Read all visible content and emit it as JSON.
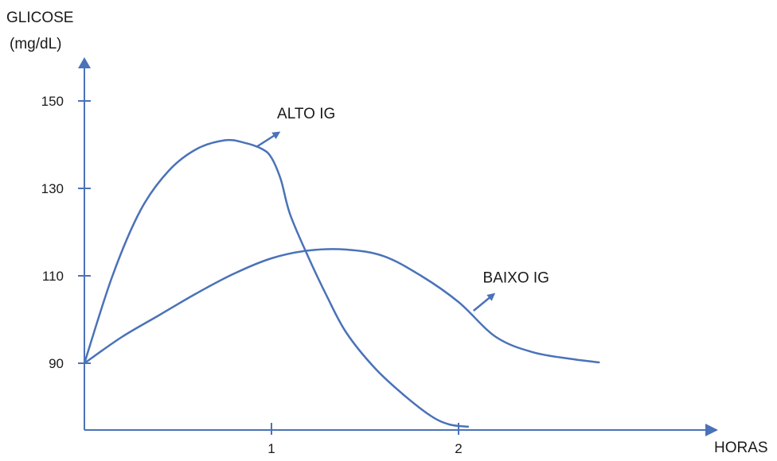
{
  "chart_data": {
    "type": "line",
    "ylabel_line1": "GLICOSE",
    "ylabel_line2": "(mg/dL)",
    "xlabel": "HORAS",
    "x_ticks": [
      1,
      2
    ],
    "y_ticks": [
      90,
      110,
      130,
      150
    ],
    "xlim": [
      0,
      3.3
    ],
    "ylim": [
      73,
      155
    ],
    "grid": false,
    "series": [
      {
        "name": "ALTO IG",
        "color": "#4a72b8",
        "x": [
          0,
          0.15,
          0.3,
          0.45,
          0.6,
          0.75,
          0.85,
          0.95,
          1.0,
          1.05,
          1.1,
          1.2,
          1.3,
          1.4,
          1.55,
          1.7,
          1.85,
          1.95,
          2.05
        ],
        "y": [
          90,
          110,
          125,
          134,
          139,
          141,
          140.5,
          139,
          137,
          132,
          124,
          114,
          105,
          97,
          89,
          83,
          78,
          76,
          75.5
        ]
      },
      {
        "name": "BAIXO IG",
        "color": "#4a72b8",
        "x": [
          0,
          0.2,
          0.4,
          0.6,
          0.8,
          1.0,
          1.2,
          1.4,
          1.6,
          1.8,
          2.0,
          2.2,
          2.4,
          2.6,
          2.75
        ],
        "y": [
          90,
          96,
          101,
          106,
          110.5,
          114,
          115.8,
          116,
          114.5,
          110,
          104,
          96,
          92.5,
          91,
          90.2
        ]
      }
    ],
    "annotations": [
      {
        "text": "ALTO IG",
        "series": 0,
        "from_x": 0.92,
        "from_y": 139.5,
        "to_x": 1.03,
        "to_y": 142.5,
        "label_x": 1.03,
        "label_y": 146
      },
      {
        "text": "BAIXO IG",
        "series": 1,
        "from_x": 2.08,
        "from_y": 102,
        "to_x": 2.18,
        "to_y": 105.5,
        "label_x": 2.13,
        "label_y": 108.5
      }
    ]
  }
}
